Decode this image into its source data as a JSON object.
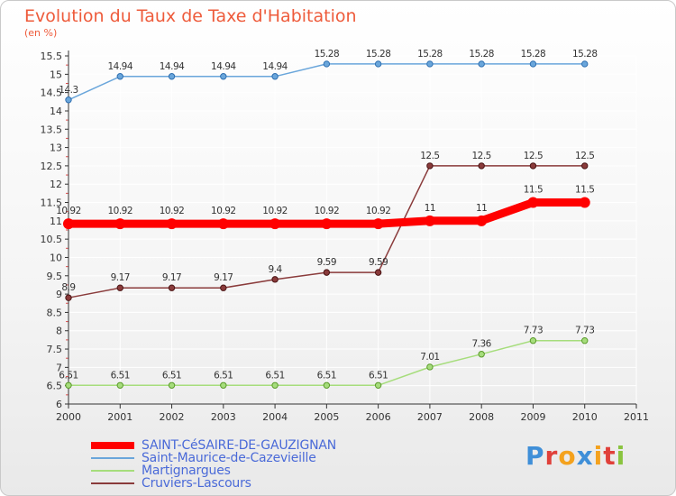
{
  "header": {
    "title": "Evolution du Taux de Taxe d'Habitation",
    "unit": "(en %)"
  },
  "colors": {
    "title": "#ee5b3b",
    "legend_text": "#4a6ad8",
    "axis": "#333333",
    "grid": "#ffffff"
  },
  "chart_data": {
    "type": "line",
    "title": "Evolution du Taux de Taxe d'Habitation",
    "ylabel": "(en %)",
    "xlabel": "",
    "xlim": [
      2000,
      2011
    ],
    "ylim": [
      6,
      15.5
    ],
    "x_ticks": [
      "2000",
      "2001",
      "2002",
      "2003",
      "2004",
      "2005",
      "2006",
      "2007",
      "2008",
      "2009",
      "2010",
      "2011"
    ],
    "y_ticks": [
      "6",
      "6.5",
      "7",
      "7.5",
      "8",
      "8.5",
      "9",
      "9.5",
      "10",
      "10.5",
      "11",
      "11.5",
      "12",
      "12.5",
      "13",
      "13.5",
      "14",
      "14.5",
      "15",
      "15.5"
    ],
    "grid": true,
    "legend_position": "bottom-left",
    "series": [
      {
        "name": "SAINT-CéSAIRE-DE-GAUZIGNAN",
        "color": "#ff0000",
        "width": "thick",
        "x": [
          2000,
          2001,
          2002,
          2003,
          2004,
          2005,
          2006,
          2007,
          2008,
          2009,
          2010
        ],
        "values": [
          10.92,
          10.92,
          10.92,
          10.92,
          10.92,
          10.92,
          10.92,
          11,
          11,
          11.5,
          11.5
        ],
        "labels": [
          "10.92",
          "10.92",
          "10.92",
          "10.92",
          "10.92",
          "10.92",
          "10.92",
          "11",
          "11",
          "11.5",
          "11.5"
        ]
      },
      {
        "name": "Saint-Maurice-de-Cazevieille",
        "color": "#6aa6db",
        "width": "thin",
        "x": [
          2000,
          2001,
          2002,
          2003,
          2004,
          2005,
          2006,
          2007,
          2008,
          2009,
          2010
        ],
        "values": [
          14.3,
          14.94,
          14.94,
          14.94,
          14.94,
          15.28,
          15.28,
          15.28,
          15.28,
          15.28,
          15.28
        ],
        "labels": [
          "14.3",
          "14.94",
          "14.94",
          "14.94",
          "14.94",
          "15.28",
          "15.28",
          "15.28",
          "15.28",
          "15.28",
          "15.28"
        ]
      },
      {
        "name": "Martignargues",
        "color": "#a6dd7c",
        "width": "thin",
        "x": [
          2000,
          2001,
          2002,
          2003,
          2004,
          2005,
          2006,
          2007,
          2008,
          2009,
          2010
        ],
        "values": [
          6.51,
          6.51,
          6.51,
          6.51,
          6.51,
          6.51,
          6.51,
          7.01,
          7.36,
          7.73,
          7.73
        ],
        "labels": [
          "6.51",
          "6.51",
          "6.51",
          "6.51",
          "6.51",
          "6.51",
          "6.51",
          "7.01",
          "7.36",
          "7.73",
          "7.73"
        ]
      },
      {
        "name": "Cruviers-Lascours",
        "color": "#8a3b3b",
        "width": "thin",
        "x": [
          2000,
          2001,
          2002,
          2003,
          2004,
          2005,
          2006,
          2007,
          2008,
          2009,
          2010
        ],
        "values": [
          8.9,
          9.17,
          9.17,
          9.17,
          9.4,
          9.59,
          9.59,
          12.5,
          12.5,
          12.5,
          12.5
        ],
        "labels": [
          "8.9",
          "9.17",
          "9.17",
          "9.17",
          "9.4",
          "9.59",
          "9.59",
          "12.5",
          "12.5",
          "12.5",
          "12.5"
        ]
      }
    ]
  },
  "logo": {
    "letters": [
      "P",
      "r",
      "o",
      "x",
      "i",
      "t",
      "i"
    ],
    "colors": [
      "#3f8fd8",
      "#e0403a",
      "#f4a21e",
      "#3f8fd8",
      "#f4a21e",
      "#e0403a",
      "#8ac43f"
    ]
  }
}
